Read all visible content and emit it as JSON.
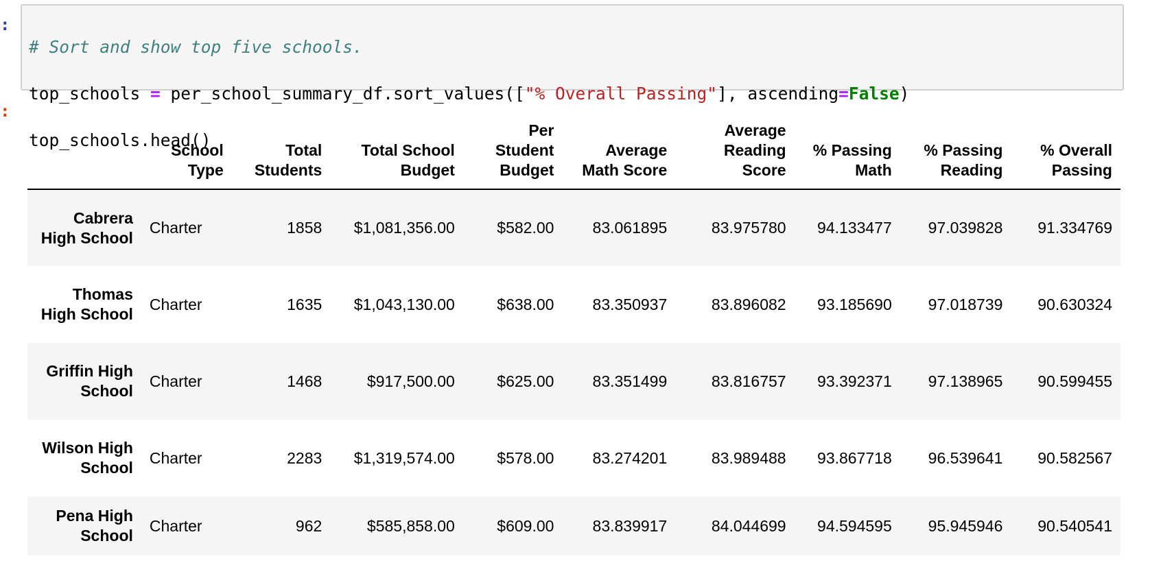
{
  "cell": {
    "in_prompt": ":",
    "out_prompt": ":",
    "code": {
      "comment": "# Sort and show top five schools.",
      "line2_a": "top_schools ",
      "line2_op": "=",
      "line2_b": " per_school_summary_df.sort_values([",
      "line2_str": "\"% Overall Passing\"",
      "line2_c": "], ascending",
      "line2_op2": "=",
      "line2_kw": "False",
      "line2_d": ")",
      "line3": "top_schools.head()"
    }
  },
  "table": {
    "columns": [
      "",
      "School Type",
      "Total Students",
      "Total School Budget",
      "Per Student Budget",
      "Average Math Score",
      "Average Reading Score",
      "% Passing Math",
      "% Passing Reading",
      "% Overall Passing"
    ],
    "rows": [
      {
        "index": "Cabrera High School",
        "cells": [
          "Charter",
          "1858",
          "$1,081,356.00",
          "$582.00",
          "83.061895",
          "83.975780",
          "94.133477",
          "97.039828",
          "91.334769"
        ]
      },
      {
        "index": "Thomas High School",
        "cells": [
          "Charter",
          "1635",
          "$1,043,130.00",
          "$638.00",
          "83.350937",
          "83.896082",
          "93.185690",
          "97.018739",
          "90.630324"
        ]
      },
      {
        "index": "Griffin High School",
        "cells": [
          "Charter",
          "1468",
          "$917,500.00",
          "$625.00",
          "83.351499",
          "83.816757",
          "93.392371",
          "97.138965",
          "90.599455"
        ]
      },
      {
        "index": "Wilson High School",
        "cells": [
          "Charter",
          "2283",
          "$1,319,574.00",
          "$578.00",
          "83.274201",
          "83.989488",
          "93.867718",
          "96.539641",
          "90.582567"
        ]
      },
      {
        "index": "Pena High School",
        "cells": [
          "Charter",
          "962",
          "$585,858.00",
          "$609.00",
          "83.839917",
          "84.044699",
          "94.594595",
          "95.945946",
          "90.540541"
        ]
      }
    ]
  }
}
